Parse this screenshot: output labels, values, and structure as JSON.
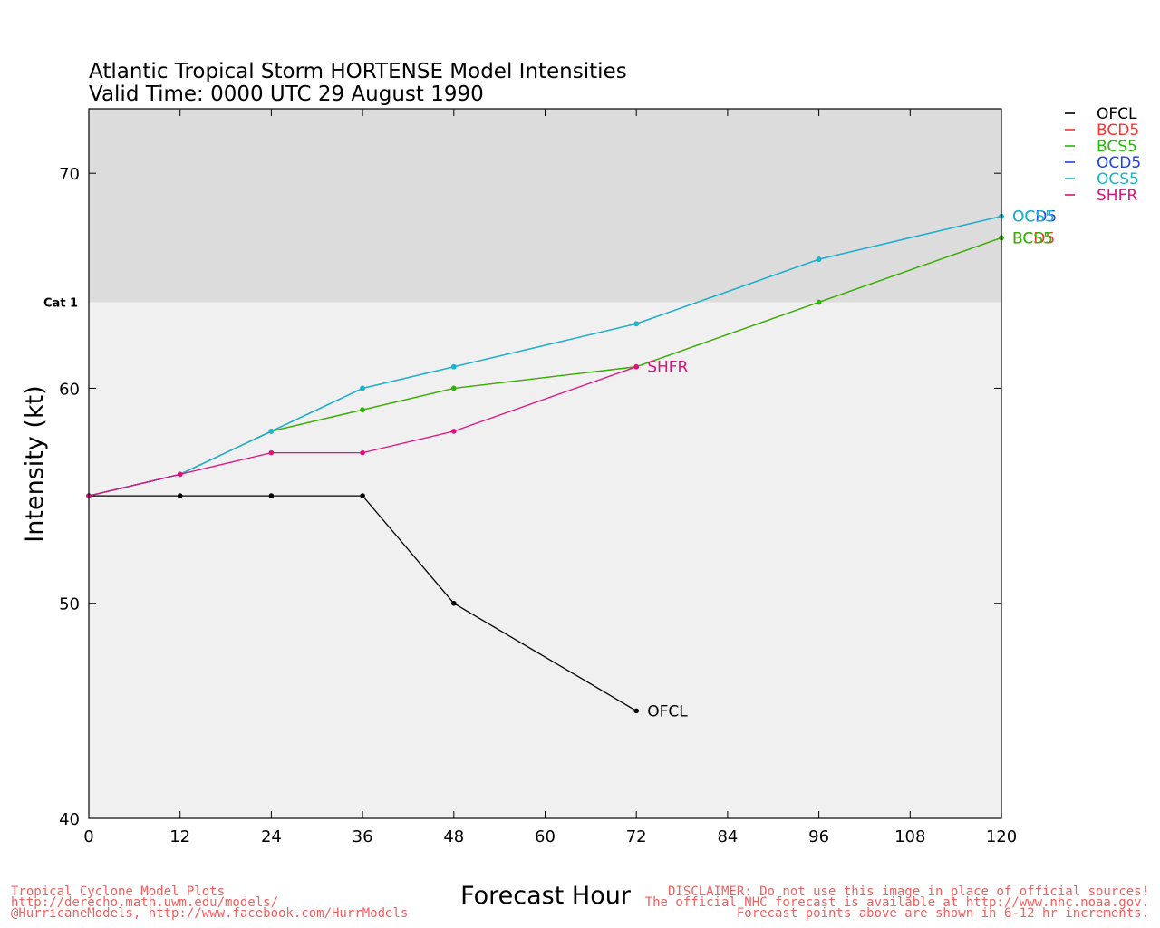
{
  "chart_data": {
    "type": "line",
    "title": "Atlantic Tropical Storm HORTENSE Model Intensities",
    "subtitle": "Valid Time: 0000 UTC 29 August 1990",
    "xlabel": "Forecast Hour",
    "ylabel": "Intensity (kt)",
    "xlim": [
      0,
      120
    ],
    "ylim": [
      40,
      73
    ],
    "x_ticks": [
      0,
      12,
      24,
      36,
      48,
      60,
      72,
      84,
      96,
      108,
      120
    ],
    "y_ticks": [
      40,
      50,
      60,
      70
    ],
    "category_threshold": {
      "label": "Cat 1",
      "value": 64,
      "band_color": "#dcdcdc",
      "below_color": "#f0f0f0"
    },
    "legend_position": "right",
    "grid": false,
    "series": [
      {
        "name": "OFCL",
        "color": "#000000",
        "end_label": "OFCL",
        "points": [
          [
            0,
            55
          ],
          [
            12,
            55
          ],
          [
            24,
            55
          ],
          [
            36,
            55
          ],
          [
            48,
            50
          ],
          [
            72,
            45
          ]
        ]
      },
      {
        "name": "BCD5",
        "color": "#ff3030",
        "end_label": "BCD5",
        "points": [
          [
            0,
            55
          ],
          [
            12,
            56
          ],
          [
            24,
            58
          ],
          [
            36,
            59
          ],
          [
            48,
            60
          ],
          [
            72,
            61
          ],
          [
            96,
            64
          ],
          [
            120,
            67
          ]
        ]
      },
      {
        "name": "BCS5",
        "color": "#22bb00",
        "end_label": "BCS5",
        "points": [
          [
            0,
            55
          ],
          [
            12,
            56
          ],
          [
            24,
            58
          ],
          [
            36,
            59
          ],
          [
            48,
            60
          ],
          [
            72,
            61
          ],
          [
            96,
            64
          ],
          [
            120,
            67
          ]
        ]
      },
      {
        "name": "OCD5",
        "color": "#1f3ff0",
        "end_label": "OCD5",
        "points": [
          [
            0,
            55
          ],
          [
            12,
            56
          ],
          [
            24,
            58
          ],
          [
            36,
            60
          ],
          [
            48,
            61
          ],
          [
            72,
            63
          ],
          [
            96,
            66
          ],
          [
            120,
            68
          ]
        ]
      },
      {
        "name": "OCS5",
        "color": "#14b8c8",
        "end_label": "OCS5",
        "points": [
          [
            0,
            55
          ],
          [
            12,
            56
          ],
          [
            24,
            58
          ],
          [
            36,
            60
          ],
          [
            48,
            61
          ],
          [
            72,
            63
          ],
          [
            96,
            66
          ],
          [
            120,
            68
          ]
        ]
      },
      {
        "name": "SHFR",
        "color": "#e0107f",
        "end_label": "SHFR",
        "points": [
          [
            0,
            55
          ],
          [
            12,
            56
          ],
          [
            24,
            57
          ],
          [
            36,
            57
          ],
          [
            48,
            58
          ],
          [
            72,
            61
          ]
        ]
      }
    ]
  },
  "footer": {
    "left": [
      "Tropical Cyclone Model Plots",
      "http://derecho.math.uwm.edu/models/",
      "@HurricaneModels, http://www.facebook.com/HurrModels"
    ],
    "right": [
      "DISCLAIMER: Do not use this image in place of official sources!",
      "The official NHC forecast is available at http://www.nhc.noaa.gov.",
      "Forecast points above are shown in 6-12 hr increments."
    ],
    "color": "#f06060"
  }
}
